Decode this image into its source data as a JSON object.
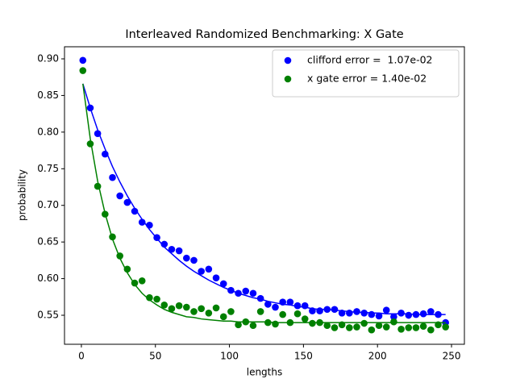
{
  "chart_data": {
    "type": "scatter",
    "title": "Interleaved Randomized Benchmarking: X Gate",
    "x_label": "lengths",
    "y_label": "probability",
    "x": [
      1,
      6,
      11,
      16,
      21,
      26,
      31,
      36,
      41,
      46,
      51,
      56,
      61,
      66,
      71,
      76,
      81,
      86,
      91,
      96,
      101,
      106,
      111,
      116,
      121,
      126,
      131,
      136,
      141,
      146,
      151,
      156,
      161,
      166,
      171,
      176,
      181,
      186,
      191,
      196,
      201,
      206,
      211,
      216,
      221,
      226,
      231,
      236,
      241,
      246
    ],
    "series": [
      {
        "name": "clifford error =  1.07e-02",
        "color": "#0000ff",
        "values": [
          0.898,
          0.833,
          0.798,
          0.77,
          0.738,
          0.713,
          0.704,
          0.692,
          0.677,
          0.673,
          0.656,
          0.647,
          0.64,
          0.638,
          0.628,
          0.625,
          0.61,
          0.613,
          0.601,
          0.593,
          0.584,
          0.58,
          0.583,
          0.58,
          0.573,
          0.565,
          0.561,
          0.568,
          0.568,
          0.563,
          0.563,
          0.556,
          0.556,
          0.558,
          0.558,
          0.553,
          0.553,
          0.555,
          0.553,
          0.551,
          0.549,
          0.557,
          0.548,
          0.553,
          0.55,
          0.551,
          0.552,
          0.555,
          0.551,
          0.54
        ],
        "fit": [
          0.866,
          0.833,
          0.803,
          0.777,
          0.753,
          0.732,
          0.713,
          0.696,
          0.681,
          0.667,
          0.655,
          0.643,
          0.634,
          0.625,
          0.617,
          0.61,
          0.604,
          0.598,
          0.593,
          0.588,
          0.584,
          0.58,
          0.577,
          0.574,
          0.572,
          0.569,
          0.567,
          0.565,
          0.564,
          0.562,
          0.561,
          0.559,
          0.558,
          0.558,
          0.557,
          0.556,
          0.555,
          0.554,
          0.554,
          0.553,
          0.553,
          0.552,
          0.552,
          0.552,
          0.552,
          0.551,
          0.551,
          0.551,
          0.551,
          0.551
        ]
      },
      {
        "name": "x gate error = 1.40e-02",
        "color": "#008000",
        "values": [
          0.884,
          0.784,
          0.726,
          0.688,
          0.657,
          0.631,
          0.613,
          0.594,
          0.597,
          0.574,
          0.572,
          0.564,
          0.559,
          0.563,
          0.561,
          0.555,
          0.559,
          0.553,
          0.56,
          0.548,
          0.555,
          0.537,
          0.541,
          0.536,
          0.555,
          0.54,
          0.538,
          0.551,
          0.54,
          0.552,
          0.545,
          0.539,
          0.54,
          0.536,
          0.533,
          0.537,
          0.533,
          0.534,
          0.539,
          0.53,
          0.536,
          0.534,
          0.541,
          0.531,
          0.533,
          0.533,
          0.535,
          0.53,
          0.537,
          0.534
        ],
        "fit": [
          0.866,
          0.791,
          0.733,
          0.689,
          0.654,
          0.628,
          0.608,
          0.592,
          0.58,
          0.571,
          0.564,
          0.558,
          0.554,
          0.551,
          0.548,
          0.547,
          0.545,
          0.544,
          0.543,
          0.542,
          0.542,
          0.541,
          0.541,
          0.541,
          0.541,
          0.541,
          0.54,
          0.54,
          0.54,
          0.54,
          0.54,
          0.54,
          0.54,
          0.54,
          0.54,
          0.54,
          0.54,
          0.54,
          0.54,
          0.54,
          0.54,
          0.54,
          0.54,
          0.54,
          0.54,
          0.54,
          0.54,
          0.54,
          0.54,
          0.54
        ]
      }
    ],
    "xlim": [
      -11.4,
      258.7
    ],
    "xticks": [
      0,
      50,
      100,
      150,
      200,
      250
    ],
    "ylim": [
      0.5104,
      0.9165
    ],
    "yticks": [
      0.55,
      {
        "value": 0.6,
        "label": "0.60"
      },
      0.65,
      {
        "value": 0.7,
        "label": "0.70"
      },
      0.75,
      {
        "value": 0.8,
        "label": "0.80"
      },
      0.85,
      {
        "value": 0.9,
        "label": "0.90"
      }
    ],
    "legend": "upper right",
    "grid": false
  }
}
